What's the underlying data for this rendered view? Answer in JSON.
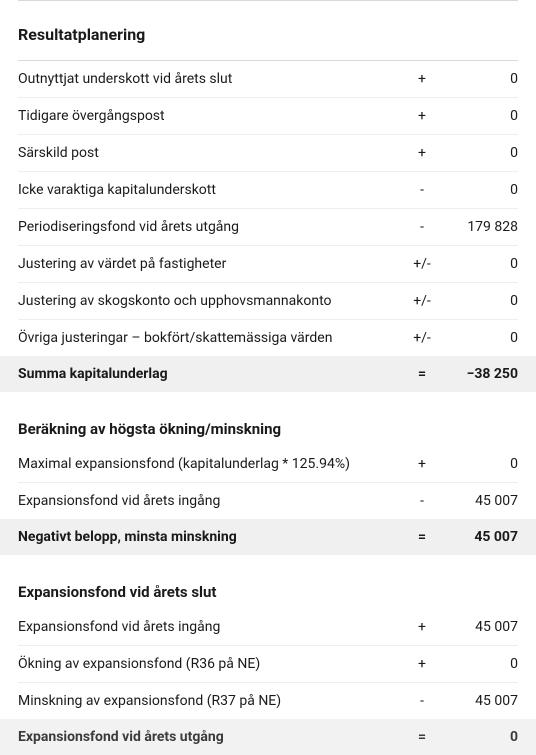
{
  "title": "Resultatplanering",
  "section1": {
    "rows": [
      {
        "label": "Outnyttjat underskott vid årets slut",
        "sign": "+",
        "value": "0"
      },
      {
        "label": "Tidigare övergångspost",
        "sign": "+",
        "value": "0"
      },
      {
        "label": "Särskild post",
        "sign": "+",
        "value": "0"
      },
      {
        "label": "Icke varaktiga kapitalunderskott",
        "sign": "-",
        "value": "0"
      },
      {
        "label": "Periodiseringsfond vid årets utgång",
        "sign": "-",
        "value": "179 828"
      },
      {
        "label": "Justering av värdet på fastigheter",
        "sign": "+/-",
        "value": "0"
      },
      {
        "label": "Justering av skogskonto och upphovsmannakonto",
        "sign": "+/-",
        "value": "0"
      },
      {
        "label": "Övriga justeringar – bokfört/skattemässiga värden",
        "sign": "+/-",
        "value": "0"
      }
    ],
    "summary": {
      "label": "Summa kapitalunderlag",
      "sign": "=",
      "value": "−38 250"
    }
  },
  "section2": {
    "title": "Beräkning av högsta ökning/minskning",
    "rows": [
      {
        "label": "Maximal expansionsfond (kapitalunderlag * 125.94%)",
        "sign": "+",
        "value": "0"
      },
      {
        "label": "Expansionsfond vid årets ingång",
        "sign": "-",
        "value": "45 007"
      }
    ],
    "summary": {
      "label": "Negativt belopp, minsta minskning",
      "sign": "=",
      "value": "45 007"
    }
  },
  "section3": {
    "title": "Expansionsfond vid årets slut",
    "rows": [
      {
        "label": "Expansionsfond vid årets ingång",
        "sign": "+",
        "value": "45 007"
      },
      {
        "label": "Ökning av expansionsfond (R36 på NE)",
        "sign": "+",
        "value": "0"
      },
      {
        "label": "Minskning av expansionsfond (R37 på NE)",
        "sign": "-",
        "value": "45 007"
      }
    ],
    "summary": {
      "label": "Expansionsfond vid årets utgång",
      "sign": "=",
      "value": "0"
    }
  }
}
